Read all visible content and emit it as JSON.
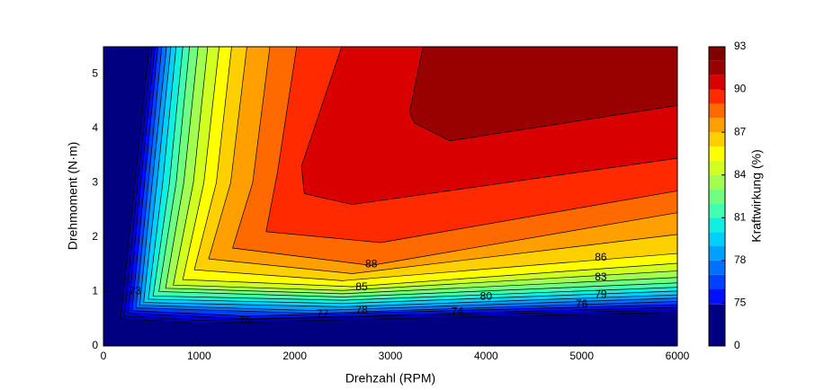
{
  "chart_data": {
    "type": "contour",
    "xlabel": "Drehzahl (RPM)",
    "ylabel": "Drehmoment (N·m)",
    "xlim": [
      0,
      6000
    ],
    "ylim": [
      0,
      5.5
    ],
    "xticks": [
      0,
      1000,
      2000,
      3000,
      4000,
      5000,
      6000
    ],
    "yticks": [
      0,
      1,
      2,
      3,
      4,
      5
    ],
    "contours": [
      {
        "level": 73,
        "x": [
          480,
          330,
          180,
          1000,
          6000
        ],
        "y": [
          5.5,
          3.0,
          0.5,
          0.42,
          0.62
        ]
      },
      {
        "level": 74,
        "x": [
          510,
          360,
          220,
          1000,
          6000
        ],
        "y": [
          5.5,
          3.0,
          0.55,
          0.47,
          0.66
        ]
      },
      {
        "level": 75,
        "x": [
          540,
          390,
          260,
          1500,
          6000
        ],
        "y": [
          5.5,
          3.0,
          0.6,
          0.5,
          0.71
        ]
      },
      {
        "level": 76,
        "x": [
          570,
          430,
          300,
          1500,
          6000
        ],
        "y": [
          5.5,
          3.0,
          0.65,
          0.55,
          0.76
        ]
      },
      {
        "level": 77,
        "x": [
          610,
          470,
          340,
          2200,
          6000
        ],
        "y": [
          5.5,
          3.0,
          0.7,
          0.6,
          0.82
        ]
      },
      {
        "level": 78,
        "x": [
          660,
          510,
          380,
          2200,
          6000
        ],
        "y": [
          5.5,
          3.0,
          0.75,
          0.65,
          0.88
        ]
      },
      {
        "level": 79,
        "x": [
          705,
          560,
          420,
          2500,
          6000
        ],
        "y": [
          5.5,
          3.0,
          0.8,
          0.72,
          0.94
        ]
      },
      {
        "level": 80,
        "x": [
          760,
          620,
          470,
          2500,
          6000
        ],
        "y": [
          5.5,
          3.0,
          0.86,
          0.78,
          1.01
        ]
      },
      {
        "level": 81,
        "x": [
          830,
          690,
          520,
          2500,
          6000
        ],
        "y": [
          5.5,
          3.0,
          0.92,
          0.84,
          1.08
        ]
      },
      {
        "level": 82,
        "x": [
          900,
          760,
          580,
          2500,
          6000
        ],
        "y": [
          5.5,
          3.0,
          1.0,
          0.9,
          1.16
        ]
      },
      {
        "level": 83,
        "x": [
          990,
          840,
          650,
          2500,
          6000
        ],
        "y": [
          5.5,
          3.0,
          1.06,
          0.96,
          1.26
        ]
      },
      {
        "level": 84,
        "x": [
          1090,
          940,
          730,
          2500,
          6000
        ],
        "y": [
          5.5,
          3.0,
          1.12,
          1.02,
          1.38
        ]
      },
      {
        "level": 85,
        "x": [
          1210,
          1050,
          830,
          2600,
          6000
        ],
        "y": [
          5.5,
          3.0,
          1.22,
          1.09,
          1.52
        ]
      },
      {
        "level": 86,
        "x": [
          1340,
          1180,
          950,
          2500,
          6000
        ],
        "y": [
          5.5,
          3.0,
          1.4,
          1.2,
          1.7
        ]
      },
      {
        "level": 87,
        "x": [
          1500,
          1330,
          1100,
          2600,
          6000
        ],
        "y": [
          5.5,
          3.0,
          1.6,
          1.33,
          2.05
        ]
      },
      {
        "level": 88,
        "x": [
          1740,
          1560,
          1350,
          2800,
          6000
        ],
        "y": [
          5.5,
          3.0,
          1.8,
          1.48,
          2.45
        ]
      },
      {
        "level": 89,
        "x": [
          2020,
          1820,
          1700,
          2900,
          6000
        ],
        "y": [
          5.5,
          3.2,
          2.1,
          1.9,
          2.85
        ]
      },
      {
        "level": 90,
        "x": [
          2490,
          2070,
          2100,
          2600,
          6000
        ],
        "y": [
          5.5,
          3.3,
          2.8,
          2.6,
          3.45
        ]
      },
      {
        "level": 91,
        "x": [
          3340,
          3200,
          3250,
          3620,
          6000
        ],
        "y": [
          5.5,
          4.3,
          4.1,
          3.77,
          4.42
        ]
      }
    ],
    "contour_labels": [
      {
        "value": 88,
        "x": 2800,
        "y": 1.5
      },
      {
        "value": 85,
        "x": 2700,
        "y": 1.08
      },
      {
        "value": 78,
        "x": 2700,
        "y": 0.65
      },
      {
        "value": 77,
        "x": 2290,
        "y": 0.58
      },
      {
        "value": 75,
        "x": 1480,
        "y": 0.46
      },
      {
        "value": 74,
        "x": 3700,
        "y": 0.62
      },
      {
        "value": 80,
        "x": 4000,
        "y": 0.9
      },
      {
        "value": 76,
        "x": 5000,
        "y": 0.76
      },
      {
        "value": 79,
        "x": 5200,
        "y": 0.94
      },
      {
        "value": 83,
        "x": 5200,
        "y": 1.26
      },
      {
        "value": 86,
        "x": 5200,
        "y": 1.62
      },
      {
        "value": 73,
        "x": 330,
        "y": 1.0
      }
    ],
    "colorbar": {
      "label": "Kraftwirkung (%)",
      "ticks": [
        0,
        75,
        78,
        81,
        84,
        87,
        90,
        93
      ],
      "levels": [
        0,
        73,
        74,
        75,
        76,
        77,
        78,
        79,
        80,
        81,
        82,
        83,
        84,
        85,
        86,
        87,
        88,
        89,
        90,
        91,
        92,
        93
      ],
      "colors": [
        "#000080",
        "#0000b0",
        "#0000d8",
        "#0010ff",
        "#0040ff",
        "#0070ff",
        "#00a0ff",
        "#00d0ff",
        "#10f0e0",
        "#40ffb0",
        "#70ff80",
        "#a0ff50",
        "#d0ff20",
        "#ffff00",
        "#ffd000",
        "#ffa000",
        "#ff6a00",
        "#ff2a00",
        "#d80000",
        "#990000",
        "#800000"
      ]
    }
  }
}
